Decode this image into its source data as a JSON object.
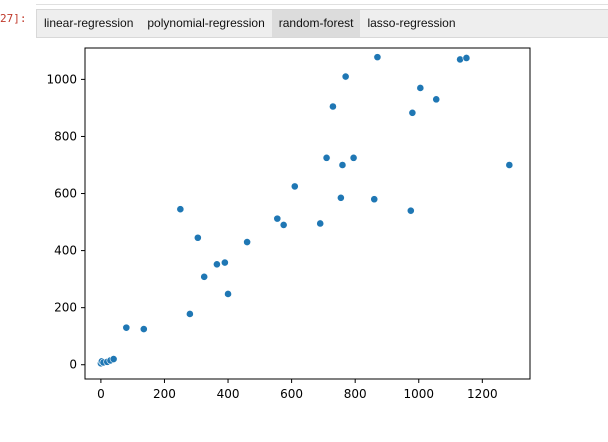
{
  "cell": {
    "prompt": "27]:"
  },
  "tabs": [
    {
      "label": "linear-regression",
      "active": false
    },
    {
      "label": "polynomial-regression",
      "active": false
    },
    {
      "label": "random-forest",
      "active": true
    },
    {
      "label": "lasso-regression",
      "active": false
    }
  ],
  "colors": {
    "point": "#1f77b4",
    "active_tab": "#dcdcdc",
    "prompt": "#c0392b"
  },
  "chart_data": {
    "type": "scatter",
    "title": "",
    "xlabel": "",
    "ylabel": "",
    "xlim": [
      -50,
      1350
    ],
    "ylim": [
      -50,
      1110
    ],
    "xticks": [
      0,
      200,
      400,
      600,
      800,
      1000,
      1200
    ],
    "yticks": [
      0,
      200,
      400,
      600,
      800,
      1000
    ],
    "grid": false,
    "series": [
      {
        "x": [
          0,
          3,
          8,
          20,
          30,
          40,
          80,
          135,
          250,
          280,
          305,
          325,
          365,
          390,
          400,
          460,
          555,
          575,
          610,
          690,
          710,
          730,
          755,
          760,
          770,
          795,
          860,
          870,
          975,
          980,
          1005,
          1055,
          1130,
          1150,
          1285
        ],
        "y": [
          5,
          12,
          8,
          10,
          15,
          20,
          130,
          125,
          545,
          178,
          445,
          308,
          352,
          358,
          248,
          430,
          512,
          490,
          625,
          495,
          725,
          905,
          585,
          700,
          1010,
          725,
          580,
          1078,
          540,
          883,
          970,
          930,
          1070,
          1075,
          700
        ]
      }
    ]
  }
}
